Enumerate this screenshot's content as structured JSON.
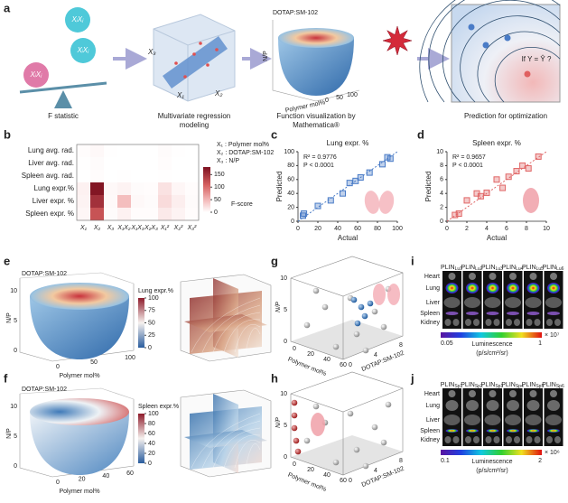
{
  "panel_labels": [
    "a",
    "b",
    "c",
    "d",
    "e",
    "f",
    "g",
    "h",
    "i",
    "j"
  ],
  "chart_data": [
    {
      "type": "heatmap",
      "rows": [
        "Lung avg. rad.",
        "Liver avg. rad.",
        "Spleen avg. rad.",
        "Lung expr.%",
        "Liver expr. %",
        "Spleen expr. %"
      ],
      "columns": [
        "X₁",
        "X₂",
        "X₃",
        "X₁X₂",
        "X₁X₃",
        "X₂X₃",
        "X₁²",
        "X₂²",
        "X₃²"
      ],
      "values": [
        [
          2,
          5,
          1,
          0,
          0,
          0,
          3,
          1,
          0
        ],
        [
          1,
          3,
          0,
          0,
          0,
          0,
          2,
          0,
          0
        ],
        [
          0,
          2,
          0,
          1,
          0,
          0,
          1,
          0,
          0
        ],
        [
          10,
          175,
          5,
          8,
          3,
          2,
          20,
          6,
          2
        ],
        [
          8,
          150,
          4,
          45,
          5,
          3,
          25,
          12,
          3
        ],
        [
          6,
          120,
          3,
          10,
          2,
          2,
          15,
          8,
          2
        ]
      ],
      "clim": [
        0,
        180
      ],
      "cticks": [
        0,
        50,
        100,
        150
      ],
      "colorbar_label": "F-score",
      "legend": [
        "X₁ : Polymer mol%",
        "X₂ : DOTAP:SM-102",
        "X₃ : N/P"
      ]
    },
    {
      "type": "scatter",
      "title": "Lung expr. %",
      "annotations": [
        "R² = 0.9776",
        "P < 0.0001"
      ],
      "xlabel": "Actual",
      "ylabel": "Predicted",
      "x": [
        5,
        6,
        20,
        33,
        45,
        52,
        58,
        63,
        72,
        85,
        90,
        93
      ],
      "values": [
        8,
        11,
        22,
        30,
        40,
        55,
        58,
        63,
        70,
        82,
        92,
        90
      ],
      "xlim": [
        0,
        100
      ],
      "ylim": [
        0,
        100
      ],
      "xticks": [
        0,
        20,
        40,
        60,
        80,
        100
      ],
      "yticks": [
        0,
        20,
        40,
        60,
        80,
        100
      ],
      "color": "#4a7cc7",
      "fit_line": true
    },
    {
      "type": "scatter",
      "title": "Spleen expr. %",
      "annotations": [
        "R² = 0.9657",
        "P < 0.0001"
      ],
      "xlabel": "Actual",
      "ylabel": "Predicted",
      "x": [
        0.8,
        1.2,
        2,
        3,
        3.4,
        4,
        5,
        5.6,
        6.2,
        7,
        7.6,
        8.2,
        9.2
      ],
      "values": [
        0.9,
        1.1,
        3,
        4,
        3.6,
        4.1,
        6,
        4.8,
        6.4,
        7.2,
        8,
        7.6,
        9.3
      ],
      "xlim": [
        0,
        10
      ],
      "ylim": [
        0,
        10
      ],
      "xticks": [
        0,
        2,
        4,
        6,
        8,
        10
      ],
      "yticks": [
        0,
        2,
        4,
        6,
        8,
        10
      ],
      "color": "#e06666",
      "fit_line": true
    }
  ],
  "panels": {
    "a": {
      "balls": [
        "XᵢXⱼ",
        "XᵢXⱼ",
        "XᵢXⱼ"
      ],
      "steps": [
        [
          "F statistic"
        ],
        [
          "Multivariate regression",
          "modeling"
        ],
        [
          "Function visualization by",
          "Mathematica®"
        ],
        [
          "Prediction for optimization"
        ]
      ],
      "regression_axes": [
        "X₃",
        "X₁",
        "X₂"
      ],
      "function_axes": [
        "DOTAP:SM-102",
        "N/P",
        "Polymer mol%"
      ],
      "polymer_ticks": [
        0,
        50,
        100
      ],
      "question": "If Y = Ŷ ?"
    },
    "e": {
      "axes": [
        "DOTAP:SM-102",
        "N/P",
        "Polymer mol%"
      ],
      "np_ticks": [
        0,
        5,
        10
      ],
      "polymer_ticks": [
        0,
        50,
        100
      ],
      "colorbar_label": "Lung expr.%",
      "clim": [
        0,
        100
      ],
      "cticks": [
        0,
        25,
        50,
        75,
        100
      ]
    },
    "f": {
      "axes": [
        "DOTAP:SM-102",
        "N/P",
        "Polymer mol%"
      ],
      "np_ticks": [
        0,
        5,
        10
      ],
      "polymer_ticks": [
        0,
        20,
        40,
        60
      ],
      "colorbar_label": "Spleen expr.%",
      "clim": [
        0,
        100
      ],
      "cticks": [
        0,
        20,
        40,
        60,
        80,
        100
      ]
    },
    "g": {
      "axes": [
        "N/P",
        "Polymer mol%",
        "DOTAP:SM-102"
      ],
      "np_ticks": [
        0,
        5,
        10
      ],
      "polymer_ticks": [
        0,
        20,
        40,
        60
      ],
      "dotap_ticks": [
        0,
        4,
        8
      ]
    },
    "h": {
      "axes": [
        "N/P",
        "Polymer mol%",
        "DOTAP:SM-102"
      ],
      "np_ticks": [
        0,
        5,
        10
      ],
      "polymer_ticks": [
        0,
        20,
        40,
        60
      ],
      "dotap_ticks": [
        0,
        4,
        8
      ]
    },
    "i": {
      "columns": [
        {
          "base": "PLIN",
          "sub": "Lu1"
        },
        {
          "base": "PLIN",
          "sub": "Lu2"
        },
        {
          "base": "PLIN",
          "sub": "Lu3"
        },
        {
          "base": "PLIN",
          "sub": "Lu4"
        },
        {
          "base": "PLIN",
          "sub": "Lu5"
        },
        {
          "base": "PLIN",
          "sub": "Lu6"
        }
      ],
      "organs": [
        "Heart",
        "Lung",
        "Liver",
        "Spleen",
        "Kidney"
      ],
      "colorbar": {
        "min": 0.05,
        "max": 1,
        "scale": "× 10⁷",
        "title": "Luminescence",
        "unit": "(p/s/cm²/sr)"
      }
    },
    "j": {
      "columns": [
        {
          "base": "PLIN",
          "sub": "Sp1"
        },
        {
          "base": "PLIN",
          "sub": "Sp2"
        },
        {
          "base": "PLIN",
          "sub": "Sp3"
        },
        {
          "base": "PLIN",
          "sub": "Sp4"
        },
        {
          "base": "PLIN",
          "sub": "Sp5"
        },
        {
          "base": "PLIN",
          "sub": "Sp6"
        }
      ],
      "organs": [
        "Heart",
        "Lung",
        "Liver",
        "Spleen",
        "Kidney"
      ],
      "colorbar": {
        "min": 0.1,
        "max": 2,
        "scale": "× 10⁶",
        "title": "Luminescence",
        "unit": "(p/s/cm²/sr)"
      }
    }
  }
}
